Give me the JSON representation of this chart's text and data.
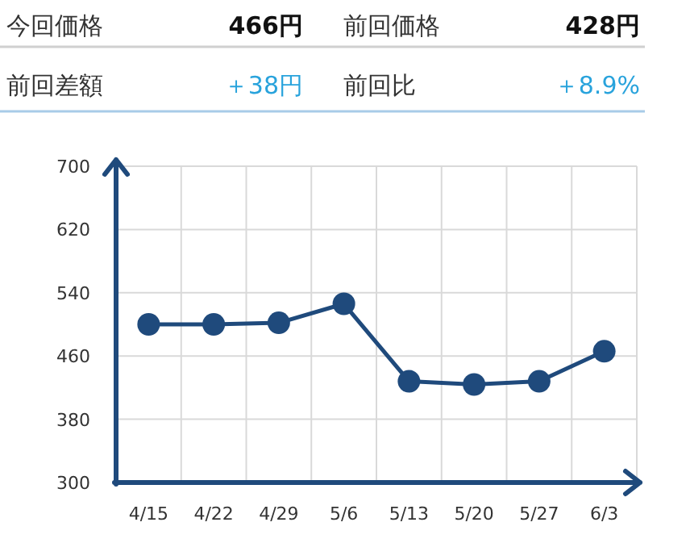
{
  "chart_data": [
    {
      "type": "other",
      "annotations": [
        "今回価格",
        "466円",
        "前回価格",
        "428円",
        "前回差額",
        "＋38円",
        "前回比",
        "＋8.9%"
      ]
    },
    {
      "type": "line",
      "categories": [
        "4/15",
        "4/22",
        "4/29",
        "5/6",
        "5/13",
        "5/20",
        "5/27",
        "6/3"
      ],
      "series": [
        {
          "color": "#1f4a7c",
          "values": [
            500,
            500,
            502,
            526,
            428,
            424,
            428,
            466
          ]
        }
      ],
      "ylim": [
        300,
        700
      ],
      "yticks": [
        300,
        380,
        460,
        540,
        620,
        700
      ],
      "grid": true,
      "marker": "circle",
      "line_style": "solid"
    }
  ]
}
